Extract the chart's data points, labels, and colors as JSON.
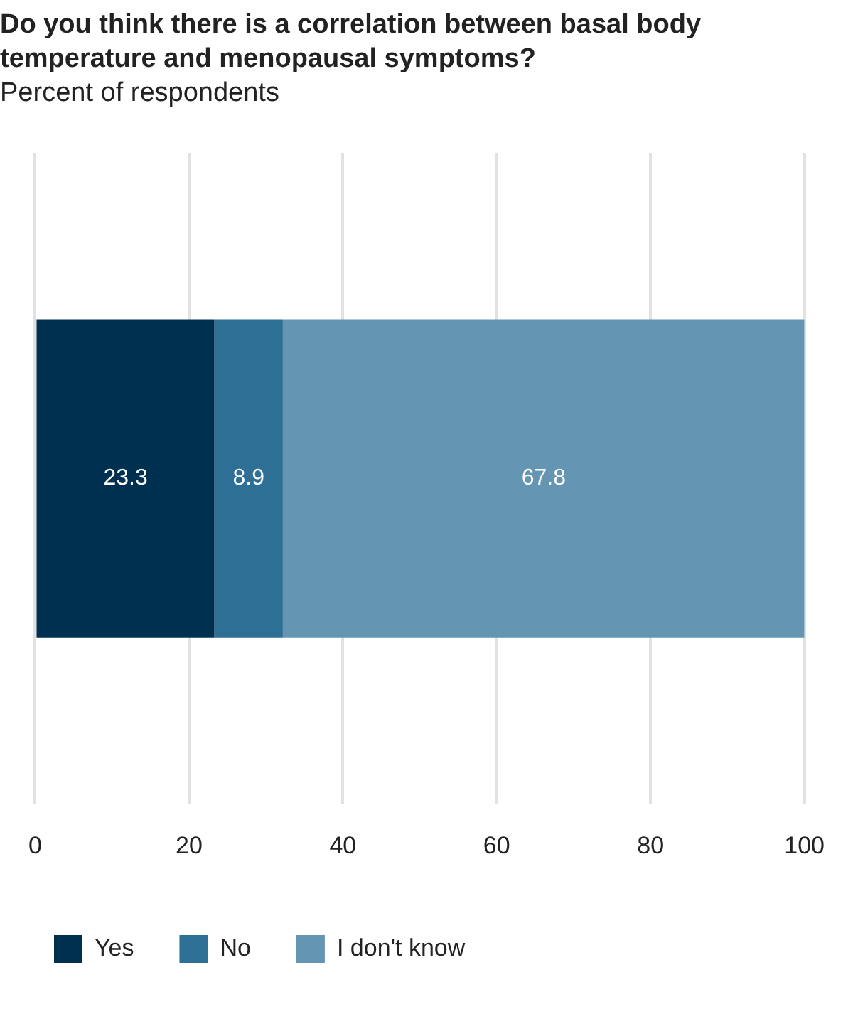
{
  "chart_data": {
    "type": "bar",
    "orientation": "horizontal",
    "stacked": true,
    "title": "Do you think there is a correlation between basal body temperature and menopausal symptoms?",
    "subtitle": "Percent of respondents",
    "categories": [
      null
    ],
    "series": [
      {
        "name": "Yes",
        "color": "#003050",
        "values": [
          23.3
        ]
      },
      {
        "name": "No",
        "color": "#2e6f96",
        "values": [
          8.9
        ]
      },
      {
        "name": "I don't know",
        "color": "#6495b3",
        "values": [
          67.8
        ]
      }
    ],
    "xlim": [
      0,
      100
    ],
    "xticks": [
      0,
      20,
      40,
      60,
      80,
      100
    ],
    "grid": "x",
    "legend": "bottom",
    "data_labels": true
  }
}
